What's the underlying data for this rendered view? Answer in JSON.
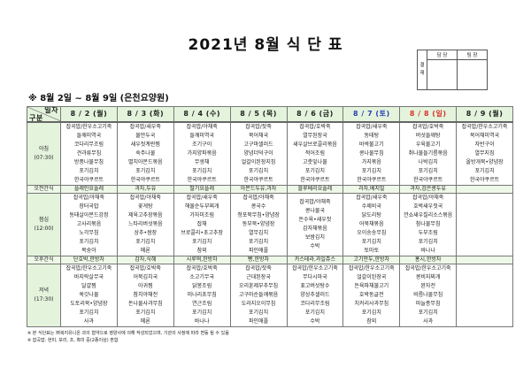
{
  "title": "2021년 8월 식 단 표",
  "approval": {
    "label": "결재",
    "col1": "담 당",
    "col2": "팀 장"
  },
  "subtitle": "※ 8월 2일 ~ 8월 9일 (은천요양원)",
  "corner": {
    "top": "일자",
    "bottom": "구분"
  },
  "colors": {
    "saturday": "#2a3fb0",
    "sunday": "#d9342b",
    "header_bg": "#e4f4dc"
  },
  "days": [
    {
      "label": "8 / 2 (월)",
      "type": "weekday"
    },
    {
      "label": "8 / 3 (화)",
      "type": "weekday"
    },
    {
      "label": "8 / 4 (수)",
      "type": "weekday"
    },
    {
      "label": "8 / 5 (목)",
      "type": "weekday"
    },
    {
      "label": "8 / 6 (금)",
      "type": "weekday"
    },
    {
      "label": "8 / 7 (토)",
      "type": "saturday"
    },
    {
      "label": "8 / 8 (일)",
      "type": "sunday"
    },
    {
      "label": "8 / 9 (월)",
      "type": "weekday"
    }
  ],
  "rows": [
    {
      "label": "아침",
      "time": "(07:30)",
      "kind": "meal",
      "cells": [
        [
          "잡곡밥/한우소고기죽",
          "들깨미역국",
          "코다리무조림",
          "견과류무침",
          "방풍나물무침",
          "포기김치",
          "한국야쿠르트"
        ],
        [
          "잡곡밥/새우죽",
          "물만두국",
          "새우젓계란찜",
          "숙주나물",
          "멸치아몬드볶음",
          "포기김치",
          "한국야쿠르트"
        ],
        [
          "잡곡밥/야채죽",
          "들깨미역국",
          "조기구이",
          "가지양파볶음",
          "무생채",
          "포기김치",
          "한국야쿠르트"
        ],
        [
          "잡곡밥/잣죽",
          "북어채국",
          "고구마샐러드",
          "양념더덕구이",
          "얼갈이된장지짐",
          "포기김치",
          "한국야쿠르트"
        ],
        [
          "잡곡밥/호박죽",
          "열무된장국",
          "새우살브로콜리볶음",
          "적어조림",
          "고춧잎나물",
          "포기김치",
          "한국야쿠르트"
        ],
        [
          "잡곡밥/새우죽",
          "동태탕",
          "바싹불고기",
          "콩나물무침",
          "가지볶음",
          "포기김치",
          "한국야쿠르트"
        ],
        [
          "잡곡밥/호박죽",
          "버섯들깨탕",
          "우육불고기",
          "취나물들기름볶음",
          "나박김치",
          "포기김치",
          "한국야쿠르트"
        ],
        [
          "잡곡밥/한우소고기죽",
          "북어채미역국",
          "자반구이",
          "열무지짐",
          "올방개묵•양념장",
          "포기김치",
          "한국야쿠르트"
        ]
      ]
    },
    {
      "label": "오전간식",
      "time": "",
      "kind": "snack",
      "cells": [
        [
          "플레인요플레"
        ],
        [
          "과자,두유"
        ],
        [
          "딸기요플레"
        ],
        [
          "아몬드두유,과자"
        ],
        [
          "블루베리요플레"
        ],
        [
          "과자,베지밀"
        ],
        [
          "과자,검은콩두유"
        ],
        []
      ]
    },
    {
      "label": "점심",
      "time": "(12:00)",
      "kind": "meal",
      "cells": [
        [
          "잡곡밥/야채죽",
          "장터국밥",
          "동태살아몬드강정",
          "고사리볶음",
          "노각무침",
          "포기김치",
          "복숭아"
        ],
        [
          "잡곡밥/야채죽",
          "꽃게탕",
          "제육고추장볶음",
          "느타리버섯볶음",
          "상추•쌈장",
          "포기김치",
          "메론"
        ],
        [
          "잡곡밥/새우죽",
          "해물순두부찌개",
          "가자미조림",
          "잡채",
          "브로콜리•초고추장",
          "포기김치",
          "참외"
        ],
        [
          "잡곡밥/야채죽",
          "콩국수",
          "청포묵무침•양념장",
          "동부묵•양념장",
          "열무김치",
          "포기김치",
          "파인애플"
        ],
        [
          "잡곡밥/야채죽",
          "콩나물국",
          "돈수육•새우젓",
          "감자채볶음",
          "보쌈김치",
          "수박"
        ],
        [
          "잡곡밥/새우죽",
          "수제비국",
          "닭도리탕",
          "어묵채볶음",
          "오이송송무침",
          "포기김치",
          "토마토"
        ],
        [
          "잡곡밥/야채죽",
          "호박새우젓국",
          "깐쇼새우칠리소스볶음",
          "참나물무침",
          "두부조림",
          "포기김치",
          "바나나"
        ],
        []
      ]
    },
    {
      "label": "오후간식",
      "time": "",
      "kind": "snack",
      "cells": [
        [
          "단호박,한방차"
        ],
        [
          "감자,식혜"
        ],
        [
          "시루떡,한방차"
        ],
        [
          "빵,한방차"
        ],
        [
          "카스테라,과일쥬스"
        ],
        [
          "고기만두,한방차"
        ],
        [
          "홍시,한방차"
        ],
        []
      ]
    },
    {
      "label": "저녁",
      "time": "(17:30)",
      "kind": "meal",
      "cells": [
        [
          "잡곡밥/한우소고기죽",
          "바지락살무국",
          "달걀찜",
          "쑥갓나물",
          "도토리묵•양념장",
          "포기김치",
          "사과"
        ],
        [
          "잡곡밥/호박죽",
          "어묵김치국",
          "아귀찜",
          "참치야채전",
          "돈나물사과무침",
          "포기김치",
          "메론"
        ],
        [
          "잡곡밥/호박죽",
          "소고기무국",
          "닭봉조림",
          "미나리초무침",
          "연근조림",
          "포기김치",
          "바나나"
        ],
        [
          "잡곡밥/잣죽",
          "근대된장국",
          "오리훈제부추무침",
          "고구마순들깨볶음",
          "도라지오이무침",
          "포기김치",
          "파인애플"
        ],
        [
          "잡곡밥/한우소고기죽",
          "무다시마국",
          "표고버섯탕수",
          "양상추샐러드",
          "코다리무조림",
          "포기김치",
          "수박"
        ],
        [
          "잡곡밥/한우소고기죽",
          "얼갈이된장국",
          "돈육파채불고기",
          "호박동글전",
          "치커리사과무침",
          "포기김치",
          "참외"
        ],
        [
          "잡곡밥/한우소고기죽",
          "콩비지찌개",
          "완자전",
          "비름나물무침",
          "마늘종무침",
          "포기김치",
          "사과"
        ],
        []
      ]
    }
  ],
  "footnotes": [
    "※ 본 식단표는 ㈜복지유니온 과의 협약으로 영양사에 의해 작성되었으며, 기관의 사정에 따라 변동 될 수 있음",
    "※ 잡곡밥: 현미, 보리, 조, 흑미 중(2종이상) 혼합"
  ]
}
